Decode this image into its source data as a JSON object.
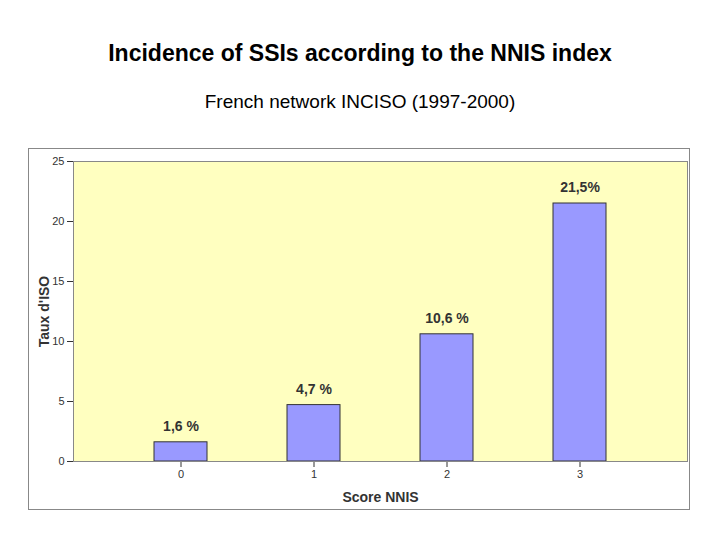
{
  "chart_data": {
    "type": "bar",
    "title": "Incidence of SSIs according to the NNIS index",
    "subtitle": "French network INCISO (1997-2000)",
    "xlabel": "Score NNIS",
    "ylabel": "Taux d'ISO",
    "categories": [
      "0",
      "1",
      "2",
      "3"
    ],
    "values": [
      1.6,
      4.7,
      10.6,
      21.5
    ],
    "value_labels": [
      "1,6 %",
      "4,7 %",
      "10,6 %",
      "21,5%"
    ],
    "color": "#9999ff",
    "ylim": [
      0,
      25
    ],
    "yticks": [
      0,
      5,
      10,
      15,
      20,
      25
    ],
    "grid": false,
    "data_labels": true
  }
}
